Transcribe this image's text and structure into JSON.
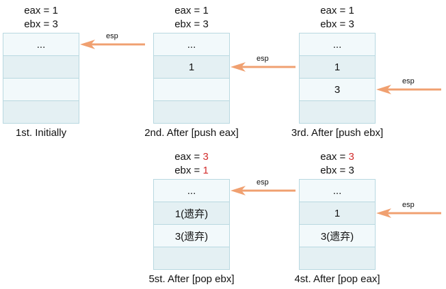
{
  "panels": [
    {
      "id": "p1",
      "regs": {
        "eax_prefix": "eax = ",
        "eax_value": "1",
        "eax_changed": false,
        "ebx_prefix": "ebx = ",
        "ebx_value": "3",
        "ebx_changed": false
      },
      "cells": [
        "...",
        "",
        "",
        ""
      ],
      "esp_index": 0,
      "caption": "1st. Initially"
    },
    {
      "id": "p2",
      "regs": {
        "eax_prefix": "eax = ",
        "eax_value": "1",
        "eax_changed": false,
        "ebx_prefix": "ebx = ",
        "ebx_value": "3",
        "ebx_changed": false
      },
      "cells": [
        "...",
        "1",
        "",
        ""
      ],
      "esp_index": 1,
      "caption": "2nd. After [push eax]"
    },
    {
      "id": "p3",
      "regs": {
        "eax_prefix": "eax = ",
        "eax_value": "1",
        "eax_changed": false,
        "ebx_prefix": "ebx = ",
        "ebx_value": "3",
        "ebx_changed": false
      },
      "cells": [
        "...",
        "1",
        "3",
        ""
      ],
      "esp_index": 2,
      "caption": "3rd. After [push ebx]"
    },
    {
      "id": "p5",
      "regs": {
        "eax_prefix": "eax = ",
        "eax_value": "3",
        "eax_changed": true,
        "ebx_prefix": "ebx = ",
        "ebx_value": "1",
        "ebx_changed": true
      },
      "cells": [
        "...",
        "1(遗弃)",
        "3(遗弃)",
        ""
      ],
      "esp_index": 0,
      "caption": "5st. After [pop ebx]"
    },
    {
      "id": "p4",
      "regs": {
        "eax_prefix": "eax = ",
        "eax_value": "3",
        "eax_changed": true,
        "ebx_prefix": "ebx = ",
        "ebx_value": "3",
        "ebx_changed": false
      },
      "cells": [
        "...",
        "1",
        "3(遗弃)",
        ""
      ],
      "esp_index": 1,
      "caption": "4st. After [pop eax]"
    }
  ],
  "esp_label": "esp",
  "colors": {
    "arrow": "#f0a070",
    "highlight": "#d22b2b",
    "cell_border": "#b8d8e0",
    "cell_light": "#f2f9fb",
    "cell_dark": "#e4f0f3"
  }
}
